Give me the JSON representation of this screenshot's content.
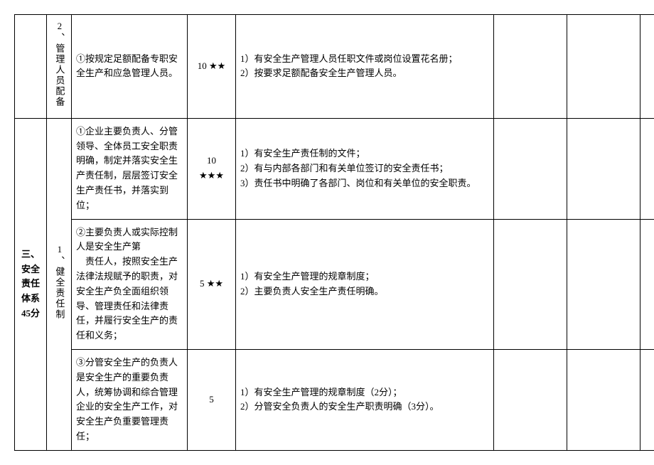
{
  "rows": [
    {
      "col1": "",
      "col2": "2、管理人员配备",
      "col3": "①按规定足额配备专职安全生产和应急管理人员。",
      "col4": "10 ★★",
      "col5": "1）有安全生产管理人员任职文件或岗位设置花名册；\n2）按要求足额配备安全生产管理人员。"
    },
    {
      "col1": "三、安全责任体系45分",
      "col2": "1、健全责任制",
      "sub": [
        {
          "col3": "①企业主要负责人、分管领导、全体员工安全职责明确，制定并落实安全生产责任制，层层签订安全生产责任书，并落实到位；",
          "col4": "10\n★★★",
          "col5": "1）有安全生产责任制的文件；\n2）有与内部各部门和有关单位签订的安全责任书；\n3）责任书中明确了各部门、岗位和有关单位的安全职责。"
        },
        {
          "col3": "②主要负责人或实际控制人是安全生产第\n　责任人，按照安全生产法律法规赋予的职责，对安全生产负全面组织领导、管理责任和法律责任，并履行安全生产的责任和义务；",
          "col4": "5 ★★",
          "col5": "1）有安全生产管理的规章制度；\n2）主要负责人安全生产责任明确。"
        },
        {
          "col3": "③分管安全生产的负责人是安全生产的重要负责人，统筹协调和综合管理企业的安全生产工作，对安全生产负重要管理责任；",
          "col4": "5",
          "col5": "1）有安全生产管理的规章制度（2分）；\n2）分管安全负责人的安全生产职责明确（3分）。"
        }
      ]
    }
  ]
}
